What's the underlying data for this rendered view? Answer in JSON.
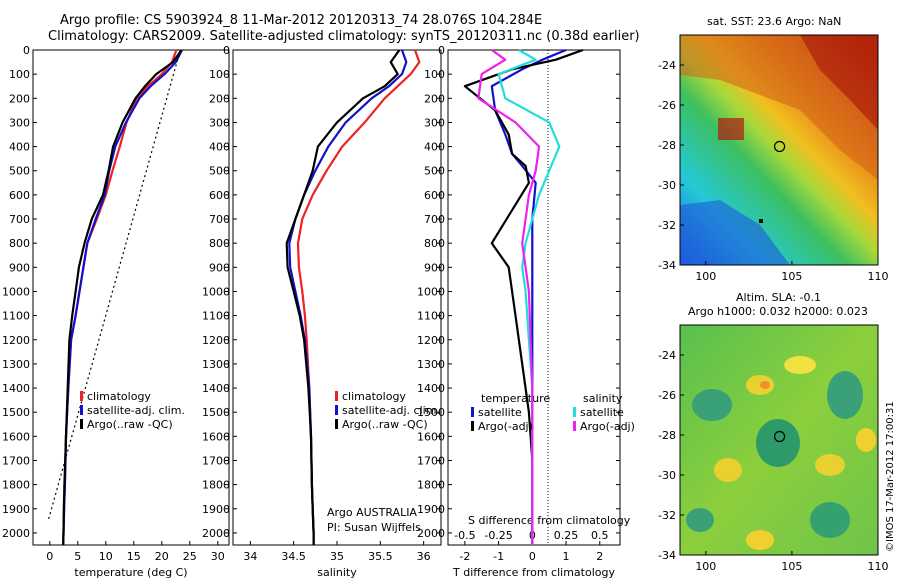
{
  "header": {
    "line1": "Argo profile: CS 5903924_8 11-Mar-2012 20120313_74 28.076S 104.284E",
    "line2": "Climatology: CARS2009. Satellite-adjusted climatology: synTS_20120311.nc (0.38d earlier)"
  },
  "colors": {
    "climatology": "#ee2222",
    "satellite": "#1111cc",
    "argo": "#000000",
    "satellite_salinity": "#22dddd",
    "argo_salinity": "#ee22ee"
  },
  "sidenote": "©IMOS 17-Mar-2012 17:00:31",
  "chart_data": [
    {
      "type": "line",
      "xlabel": "temperature (deg C)",
      "xlim": [
        -3,
        32
      ],
      "ylim": [
        0,
        2050
      ],
      "y_reversed": true,
      "xticks": [
        0,
        5,
        10,
        15,
        20,
        25,
        30
      ],
      "yticks": [
        0,
        100,
        200,
        300,
        400,
        500,
        600,
        700,
        800,
        900,
        1000,
        1100,
        1200,
        1300,
        1400,
        1500,
        1600,
        1700,
        1800,
        1900,
        2000
      ],
      "legend": [
        "climatology",
        "satellite-adj. clim.",
        "Argo(..raw -QC)"
      ],
      "series": [
        {
          "name": "climatology",
          "color": "climatology",
          "x": [
            22.6,
            21.8,
            20,
            17.5,
            15.5,
            13.7,
            12.5,
            11.2,
            10,
            8.4,
            6.7,
            6,
            5.3,
            4.6,
            3.8,
            3.3,
            2.9,
            2.7,
            2.55,
            2.45,
            2.4
          ],
          "y": [
            0,
            50,
            100,
            150,
            200,
            300,
            400,
            500,
            600,
            700,
            800,
            900,
            1000,
            1100,
            1200,
            1400,
            1600,
            1800,
            1900,
            2000,
            2050
          ]
        },
        {
          "name": "satellite-adj. clim.",
          "color": "satellite",
          "x": [
            23.6,
            22.5,
            20.5,
            18,
            16,
            13.6,
            11.7,
            10.6,
            9.8,
            8.2,
            6.7,
            6,
            5.3,
            4.6,
            3.8,
            3.3,
            2.9,
            2.7,
            2.55,
            2.45,
            2.4
          ],
          "y": [
            0,
            50,
            100,
            150,
            200,
            300,
            400,
            500,
            600,
            700,
            800,
            900,
            1000,
            1100,
            1200,
            1400,
            1600,
            1800,
            1900,
            2000,
            2050
          ]
        },
        {
          "name": "Argo(..raw -QC)",
          "color": "argo",
          "x": [
            23.5,
            22,
            19,
            17,
            15.3,
            13,
            11.3,
            10.5,
            9.5,
            7.5,
            6.2,
            5.2,
            4.6,
            4,
            3.5,
            3.2,
            2.9,
            2.6,
            2.5,
            2.45,
            2.4
          ],
          "y": [
            0,
            50,
            100,
            150,
            200,
            300,
            400,
            500,
            600,
            700,
            800,
            900,
            1000,
            1100,
            1200,
            1400,
            1600,
            1800,
            1900,
            2000,
            2050
          ]
        },
        {
          "name": "",
          "color": "argo",
          "dashed": true,
          "x": [
            23.3,
            -0.3
          ],
          "y": [
            0,
            1950
          ]
        }
      ]
    },
    {
      "type": "line",
      "xlabel": "salinity",
      "xlim": [
        33.8,
        36.2
      ],
      "ylim": [
        0,
        2050
      ],
      "y_reversed": true,
      "xticks": [
        34,
        34.5,
        35,
        35.5,
        36
      ],
      "xticklabels": [
        "34",
        "34.5",
        "35",
        "35.5",
        "36"
      ],
      "legend": [
        "climatology",
        "satellite-adj. clim.",
        "Argo(..raw -QC)"
      ],
      "annotation": [
        "Argo AUSTRALIA",
        "PI: Susan Wijffels"
      ],
      "series": [
        {
          "name": "climatology",
          "color": "climatology",
          "x": [
            35.9,
            35.95,
            35.85,
            35.7,
            35.55,
            35.32,
            35.06,
            34.88,
            34.72,
            34.6,
            34.55,
            34.56,
            34.6,
            34.63,
            34.65,
            34.68,
            34.7,
            34.71,
            34.72,
            34.73,
            34.73
          ],
          "y": [
            0,
            50,
            100,
            150,
            200,
            300,
            400,
            500,
            600,
            700,
            800,
            900,
            1000,
            1100,
            1200,
            1400,
            1600,
            1800,
            1900,
            2000,
            2050
          ]
        },
        {
          "name": "satellite-adj. clim.",
          "color": "satellite",
          "x": [
            35.75,
            35.8,
            35.75,
            35.6,
            35.4,
            35.1,
            34.9,
            34.75,
            34.62,
            34.52,
            34.45,
            34.46,
            34.52,
            34.58,
            34.63,
            34.68,
            34.7,
            34.71,
            34.72,
            34.73,
            34.73
          ],
          "y": [
            0,
            50,
            100,
            150,
            200,
            300,
            400,
            500,
            600,
            700,
            800,
            900,
            1000,
            1100,
            1200,
            1400,
            1600,
            1800,
            1900,
            2000,
            2050
          ]
        },
        {
          "name": "Argo(..raw -QC)",
          "color": "argo",
          "x": [
            35.72,
            35.62,
            35.7,
            35.55,
            35.3,
            35.0,
            34.78,
            34.72,
            34.62,
            34.52,
            34.42,
            34.43,
            34.5,
            34.57,
            34.62,
            34.67,
            34.7,
            34.71,
            34.72,
            34.73,
            34.73
          ],
          "y": [
            0,
            50,
            100,
            150,
            200,
            300,
            400,
            500,
            600,
            700,
            800,
            900,
            1000,
            1100,
            1200,
            1400,
            1600,
            1800,
            1900,
            2000,
            2050
          ]
        }
      ]
    },
    {
      "type": "line",
      "xlabel": "T difference from climatology",
      "xlabel_top": "S difference from climatology",
      "xlim": [
        -2.5,
        2.6
      ],
      "ylim": [
        0,
        2050
      ],
      "y_reversed": true,
      "xticks": [
        -2,
        -1,
        0,
        1,
        2
      ],
      "top_ticklabels": [
        "-0.5",
        "-0.25",
        "0",
        "0.25",
        "0.5"
      ],
      "legend_headers": [
        "temperature",
        "salinity"
      ],
      "legend": [
        "satellite",
        "Argo(-adj)",
        "satellite",
        "Argo(-adj)"
      ],
      "series": [
        {
          "name": "satellite",
          "color": "satellite",
          "x": [
            1,
            0.3,
            -0.3,
            -1.2,
            -1.1,
            -0.8,
            -0.6,
            -0.3,
            0.1,
            0.0,
            0.0,
            0.0,
            0.0,
            0.0,
            0.0,
            0.0,
            0.0,
            0.0
          ],
          "y": [
            0,
            40,
            80,
            150,
            250,
            350,
            430,
            480,
            550,
            700,
            900,
            1100,
            1300,
            1500,
            1700,
            1900,
            2000,
            2050
          ]
        },
        {
          "name": "Argo(-adj)",
          "color": "argo",
          "x": [
            1.5,
            0.7,
            -0.6,
            -2.0,
            -1.1,
            -0.7,
            -0.6,
            -0.2,
            -0.1,
            -1.2,
            -0.7,
            -0.5,
            -0.3,
            -0.1,
            0.0,
            0.0,
            0.0,
            0.0
          ],
          "y": [
            0,
            40,
            80,
            150,
            250,
            350,
            430,
            480,
            550,
            800,
            900,
            1100,
            1300,
            1500,
            1700,
            1900,
            2000,
            2050
          ]
        },
        {
          "name": "satellite",
          "color": "satellite_salinity",
          "x": [
            -0.4,
            0.1,
            -1.0,
            -0.8,
            0.5,
            0.8,
            0.5,
            0.2,
            0.0,
            -0.2,
            -0.3,
            -0.2,
            -0.1,
            0.0,
            0.0,
            0.0,
            0.0
          ],
          "y": [
            0,
            40,
            100,
            200,
            300,
            400,
            500,
            600,
            700,
            800,
            900,
            1000,
            1200,
            1400,
            1600,
            1800,
            2050
          ]
        },
        {
          "name": "Argo(-adj)",
          "color": "argo_salinity",
          "x": [
            -1.2,
            -0.8,
            -1.5,
            -1.6,
            -0.5,
            0.2,
            0.1,
            -0.1,
            -0.2,
            -0.3,
            -0.2,
            -0.1,
            -0.05,
            0.0,
            0.0,
            0.0,
            0.0
          ],
          "y": [
            0,
            40,
            100,
            200,
            300,
            400,
            500,
            600,
            700,
            800,
            900,
            1000,
            1200,
            1400,
            1600,
            1800,
            2050
          ]
        }
      ]
    }
  ],
  "maps": [
    {
      "title": "sat. SST: 23.6  Argo: NaN",
      "type": "heatmap",
      "xlim": [
        98.5,
        110
      ],
      "ylim": [
        -34,
        -22.5
      ],
      "xticks": [
        100,
        105,
        110
      ],
      "yticks": [
        -24,
        -26,
        -28,
        -30,
        -32,
        -34
      ],
      "marker": {
        "lon": 104.284,
        "lat": -28.076
      }
    },
    {
      "title1": "Altim. SLA: -0.1",
      "title2": "Argo h1000: 0.032 h2000: 0.023",
      "type": "heatmap",
      "xlim": [
        98.5,
        110
      ],
      "ylim": [
        -34,
        -22.5
      ],
      "xticks": [
        100,
        105,
        110
      ],
      "yticks": [
        -24,
        -26,
        -28,
        -30,
        -32,
        -34
      ],
      "marker": {
        "lon": 104.284,
        "lat": -28.076
      }
    }
  ]
}
